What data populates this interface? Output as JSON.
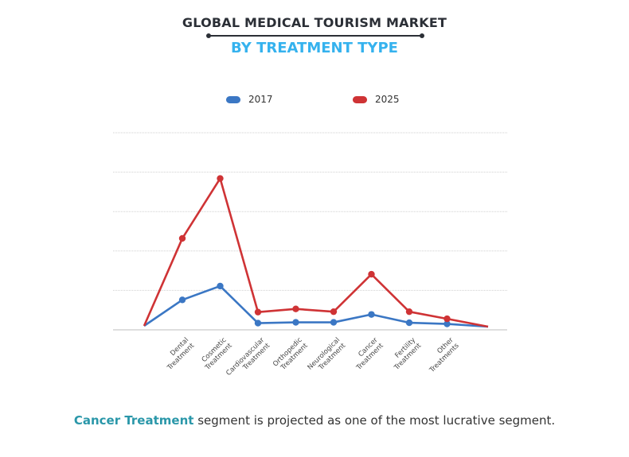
{
  "header": {
    "title": "GLOBAL MEDICAL TOURISM MARKET",
    "subtitle": "BY TREATMENT TYPE"
  },
  "colors": {
    "series_2017": "#3b77c4",
    "series_2025": "#cf3335",
    "subtitle": "#35b2ee",
    "highlight": "#2a97a9",
    "grid": "#cfcfcf"
  },
  "chart_data": {
    "type": "line",
    "title": "GLOBAL MEDICAL TOURISM MARKET",
    "subtitle": "BY TREATMENT TYPE",
    "categories": [
      "Dental Treatment",
      "Cosmetic Treatment",
      "Cardiovascular Treatment",
      "Orthopedic Treatment",
      "Neurological Treatment",
      "Cancer Treatment",
      "Fertility Treatment",
      "Other Treatments"
    ],
    "category_lines": [
      [
        "Dental",
        "Treatment"
      ],
      [
        "Cosmetic",
        "Treatment"
      ],
      [
        "Cardiovascular",
        "Treatment"
      ],
      [
        "Orthopedic",
        "Treatment"
      ],
      [
        "Neurological",
        "Treatment"
      ],
      [
        "Cancer",
        "Treatment"
      ],
      [
        "Fertility",
        "Treatment"
      ],
      [
        "Other",
        "Treatments"
      ]
    ],
    "series": [
      {
        "name": "2017",
        "values": [
          7.6,
          11.1,
          1.7,
          1.9,
          1.9,
          3.9,
          1.8,
          1.5
        ]
      },
      {
        "name": "2025",
        "values": [
          23.2,
          38.4,
          4.5,
          5.3,
          4.6,
          14.1,
          4.6,
          2.8
        ]
      }
    ],
    "yticks": 5,
    "ylim": [
      0,
      50
    ],
    "grid": true,
    "legend": "top-center"
  },
  "footer": {
    "highlight": "Cancer Treatment",
    "rest": " segment is projected as one of the most lucrative segment."
  }
}
